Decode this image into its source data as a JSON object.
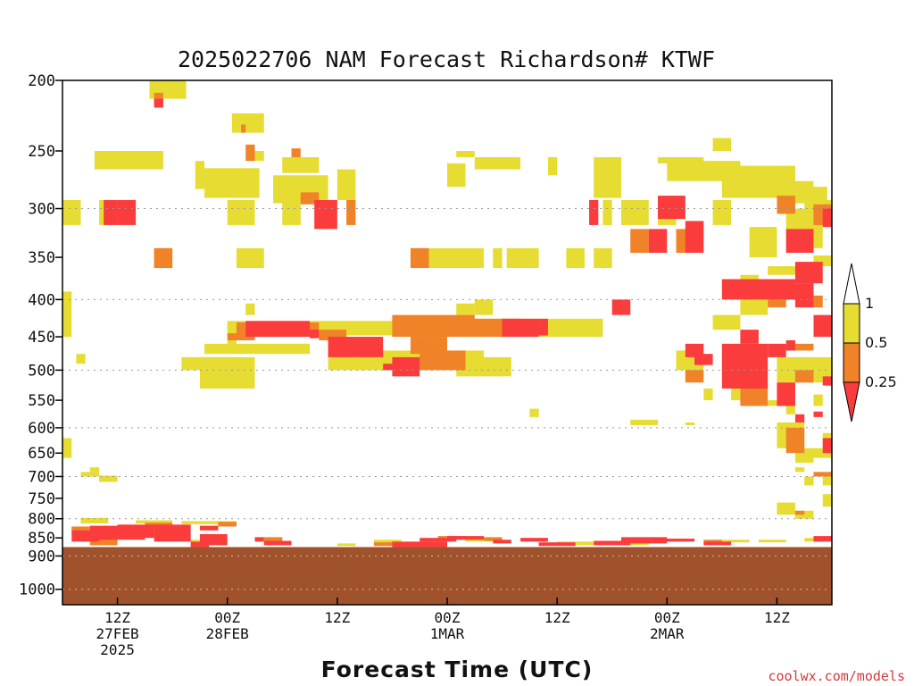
{
  "chart_data": {
    "type": "heatmap",
    "title": "2025022706 NAM Forecast Richardson# KTWF",
    "xlabel": "Forecast Time (UTC)",
    "ylabel": "",
    "credit": "coolwx.com/models",
    "x_range_hours": [
      6,
      90
    ],
    "y_range_hPa": [
      200,
      1050
    ],
    "y_scale": "log",
    "grid": "dotted horizontal at labeled pressure levels",
    "y_ticks": [
      200,
      250,
      300,
      350,
      400,
      450,
      500,
      550,
      600,
      650,
      700,
      750,
      800,
      850,
      900,
      1000
    ],
    "y_gridlines": [
      300,
      400,
      500,
      600,
      700,
      800,
      900,
      1000
    ],
    "x_ticks": [
      {
        "hour": 12,
        "line1": "12Z",
        "line2": "27FEB",
        "line3": "2025"
      },
      {
        "hour": 24,
        "line1": "00Z",
        "line2": "28FEB",
        "line3": ""
      },
      {
        "hour": 36,
        "line1": "12Z",
        "line2": "",
        "line3": ""
      },
      {
        "hour": 48,
        "line1": "00Z",
        "line2": "1MAR",
        "line3": ""
      },
      {
        "hour": 60,
        "line1": "12Z",
        "line2": "",
        "line3": ""
      },
      {
        "hour": 72,
        "line1": "00Z",
        "line2": "2MAR",
        "line3": ""
      },
      {
        "hour": 84,
        "line1": "12Z",
        "line2": "",
        "line3": ""
      }
    ],
    "legend": {
      "placement": "right",
      "levels": [
        {
          "label": "1",
          "value": 1
        },
        {
          "label": "0.5",
          "value": 0.5
        },
        {
          "label": "0.25",
          "value": 0.25
        }
      ],
      "colors": {
        "gt1": "#ffffff",
        "0.5-1": "#e6dc32",
        "0.25-0.5": "#f08228",
        "lt0.25": "#fa3c3c"
      }
    },
    "colors": {
      "ri_0.5_1": "#e6dc32",
      "ri_0.25_0.5": "#f08228",
      "ri_lt_0.25": "#fa3c3c",
      "below_ground": "#a0522d"
    },
    "ground_top_hPa": 875,
    "regions_ri_0.5_1": [
      [
        15.5,
        19.5,
        200,
        212
      ],
      [
        24.5,
        28,
        222,
        236
      ],
      [
        9.5,
        17,
        250,
        265
      ],
      [
        20.5,
        21.5,
        258,
        282
      ],
      [
        21.5,
        27.5,
        264,
        290
      ],
      [
        26.5,
        28,
        250,
        258
      ],
      [
        30,
        34,
        255,
        268
      ],
      [
        29,
        35,
        270,
        295
      ],
      [
        36,
        38,
        265,
        292
      ],
      [
        48,
        50,
        260,
        280
      ],
      [
        49,
        51,
        250,
        255
      ],
      [
        51,
        56,
        255,
        265
      ],
      [
        48,
        48.5,
        260,
        265
      ],
      [
        59,
        60,
        255,
        270
      ],
      [
        64,
        67,
        255,
        290
      ],
      [
        72,
        80,
        258,
        275
      ],
      [
        71,
        76,
        255,
        260
      ],
      [
        78,
        86,
        262,
        290
      ],
      [
        86,
        89.5,
        280,
        295
      ],
      [
        85,
        88,
        275,
        283
      ],
      [
        77,
        79,
        240,
        250
      ],
      [
        6,
        8,
        292,
        316
      ],
      [
        10,
        11,
        292,
        316
      ],
      [
        24,
        27,
        292,
        316
      ],
      [
        30,
        32,
        292,
        316
      ],
      [
        65,
        66,
        292,
        316
      ],
      [
        67,
        70,
        292,
        316
      ],
      [
        71,
        73,
        292,
        316
      ],
      [
        77,
        79,
        292,
        316
      ],
      [
        87,
        90,
        292,
        316
      ],
      [
        44,
        48,
        340,
        362
      ],
      [
        48,
        52,
        340,
        362
      ],
      [
        53,
        54,
        340,
        362
      ],
      [
        54.5,
        58,
        340,
        362
      ],
      [
        61,
        63,
        340,
        362
      ],
      [
        64,
        66,
        340,
        362
      ],
      [
        16,
        18,
        340,
        362
      ],
      [
        25,
        28,
        340,
        362
      ],
      [
        81,
        84,
        318,
        350
      ],
      [
        85,
        89,
        300,
        340
      ],
      [
        80,
        82,
        370,
        378
      ],
      [
        83,
        86,
        360,
        370
      ],
      [
        88,
        91,
        348,
        360
      ],
      [
        6,
        7,
        390,
        450
      ],
      [
        7.5,
        8.5,
        475,
        490
      ],
      [
        24,
        25,
        455,
        470
      ],
      [
        24,
        51,
        428,
        448
      ],
      [
        26,
        27,
        405,
        420
      ],
      [
        28,
        29,
        435,
        450
      ],
      [
        35,
        37,
        465,
        478
      ],
      [
        46,
        48,
        430,
        450
      ],
      [
        49,
        51,
        405,
        420
      ],
      [
        51,
        53,
        400,
        420
      ],
      [
        51,
        65,
        425,
        450
      ],
      [
        21.5,
        33,
        460,
        475
      ],
      [
        19,
        25,
        480,
        500
      ],
      [
        21,
        27,
        480,
        530
      ],
      [
        35,
        40,
        480,
        500
      ],
      [
        38,
        52,
        470,
        500
      ],
      [
        49,
        55,
        480,
        510
      ],
      [
        80,
        83,
        400,
        420
      ],
      [
        82,
        88,
        380,
        400
      ],
      [
        77,
        80,
        420,
        440
      ],
      [
        73,
        75,
        470,
        500
      ],
      [
        74,
        76,
        480,
        510
      ],
      [
        80,
        82,
        470,
        500
      ],
      [
        84,
        90,
        480,
        520
      ],
      [
        81,
        82,
        520,
        560
      ],
      [
        79,
        80,
        510,
        550
      ],
      [
        76,
        77,
        530,
        550
      ],
      [
        83,
        84,
        550,
        560
      ],
      [
        85,
        86,
        560,
        575
      ],
      [
        88,
        89,
        540,
        560
      ],
      [
        57,
        58,
        565,
        580
      ],
      [
        68,
        71,
        585,
        595
      ],
      [
        74,
        75,
        590,
        595
      ],
      [
        84,
        87,
        590,
        640
      ],
      [
        86,
        88,
        640,
        670
      ],
      [
        86,
        87,
        680,
        690
      ],
      [
        88,
        90,
        640,
        660
      ],
      [
        89,
        90,
        610,
        630
      ],
      [
        87,
        88,
        700,
        720
      ],
      [
        89,
        90,
        700,
        720
      ],
      [
        89,
        90,
        740,
        770
      ],
      [
        84,
        86,
        760,
        790
      ],
      [
        86,
        88,
        780,
        800
      ],
      [
        6,
        7,
        620,
        660
      ],
      [
        8,
        10,
        690,
        700
      ],
      [
        10,
        12,
        698,
        712
      ],
      [
        9,
        10,
        680,
        690
      ]
    ],
    "regions_ri_0.25_0.5": [
      [
        16,
        17,
        208,
        215
      ],
      [
        25.5,
        26,
        230,
        236
      ],
      [
        26,
        27,
        245,
        258
      ],
      [
        31,
        32,
        248,
        255
      ],
      [
        37,
        38,
        292,
        316
      ],
      [
        32,
        34,
        285,
        296
      ],
      [
        16,
        18,
        340,
        362
      ],
      [
        44,
        46,
        340,
        362
      ],
      [
        68,
        70,
        320,
        345
      ],
      [
        73,
        75,
        320,
        345
      ],
      [
        84,
        86,
        288,
        305
      ],
      [
        88,
        90,
        296,
        316
      ],
      [
        25,
        34,
        430,
        450
      ],
      [
        34,
        37,
        440,
        455
      ],
      [
        42,
        51,
        420,
        450
      ],
      [
        44,
        48,
        450,
        475
      ],
      [
        45,
        50,
        470,
        500
      ],
      [
        49,
        56,
        425,
        450
      ],
      [
        56,
        59,
        430,
        448
      ],
      [
        78,
        80,
        470,
        500
      ],
      [
        74,
        76,
        500,
        520
      ],
      [
        80,
        83,
        520,
        560
      ],
      [
        84,
        86,
        540,
        560
      ],
      [
        86,
        88,
        460,
        470
      ],
      [
        83,
        85,
        390,
        410
      ],
      [
        86,
        89,
        395,
        410
      ],
      [
        86,
        88,
        500,
        520
      ],
      [
        85,
        87,
        600,
        650
      ],
      [
        88,
        90,
        690,
        700
      ],
      [
        86,
        87,
        780,
        790
      ],
      [
        89,
        90,
        630,
        640
      ],
      [
        24,
        27,
        445,
        455
      ]
    ],
    "regions_ri_lt_0.25": [
      [
        10.5,
        12,
        292,
        316
      ],
      [
        12,
        14,
        292,
        316
      ],
      [
        16,
        17,
        212,
        218
      ],
      [
        33.5,
        36,
        292,
        320
      ],
      [
        63.5,
        64.5,
        292,
        316
      ],
      [
        70,
        72,
        320,
        345
      ],
      [
        71,
        74,
        288,
        310
      ],
      [
        74,
        76,
        312,
        345
      ],
      [
        78,
        86,
        375,
        400
      ],
      [
        86,
        89,
        355,
        380
      ],
      [
        85,
        88,
        320,
        345
      ],
      [
        89,
        90,
        300,
        318
      ],
      [
        86,
        88,
        380,
        410
      ],
      [
        26,
        33,
        428,
        450
      ],
      [
        35,
        41,
        450,
        480
      ],
      [
        33,
        34,
        440,
        452
      ],
      [
        41,
        45,
        490,
        500
      ],
      [
        42,
        45,
        480,
        510
      ],
      [
        54,
        58,
        425,
        450
      ],
      [
        58,
        59,
        425,
        448
      ],
      [
        66,
        68,
        400,
        420
      ],
      [
        74,
        76,
        460,
        480
      ],
      [
        75,
        77,
        475,
        492
      ],
      [
        78,
        83,
        460,
        530
      ],
      [
        80,
        82,
        440,
        460
      ],
      [
        83,
        85,
        460,
        480
      ],
      [
        85,
        86,
        455,
        470
      ],
      [
        90,
        91,
        380,
        400
      ],
      [
        88,
        90,
        420,
        450
      ],
      [
        84,
        86,
        520,
        560
      ],
      [
        89,
        90,
        510,
        525
      ],
      [
        89,
        90,
        620,
        650
      ],
      [
        88,
        89,
        570,
        580
      ],
      [
        86,
        87,
        575,
        590
      ]
    ],
    "near_surface_lt_0.25": [
      [
        7,
        10,
        830,
        860
      ],
      [
        9,
        15,
        818,
        855
      ],
      [
        12,
        16,
        815,
        850
      ],
      [
        16,
        20,
        815,
        860
      ],
      [
        21,
        23,
        818,
        830
      ],
      [
        21,
        24,
        840,
        870
      ],
      [
        20,
        22,
        860,
        875
      ],
      [
        27,
        28,
        848,
        860
      ],
      [
        28,
        31,
        858,
        870
      ],
      [
        42,
        48,
        860,
        875
      ],
      [
        45,
        49,
        850,
        860
      ],
      [
        48,
        52,
        845,
        855
      ],
      [
        53,
        55,
        855,
        865
      ],
      [
        56,
        59,
        850,
        860
      ],
      [
        58,
        62,
        862,
        872
      ],
      [
        64,
        68,
        858,
        870
      ],
      [
        67,
        72,
        848,
        865
      ],
      [
        71,
        75,
        852,
        860
      ],
      [
        76,
        79,
        860,
        870
      ],
      [
        88,
        90,
        845,
        860
      ]
    ],
    "near_surface_0.25_0.5": [
      [
        7,
        9,
        820,
        835
      ],
      [
        9,
        12,
        840,
        870
      ],
      [
        15,
        18,
        810,
        820
      ],
      [
        23,
        25,
        808,
        820
      ],
      [
        28,
        30,
        848,
        858
      ],
      [
        40,
        44,
        862,
        872
      ],
      [
        47,
        50,
        845,
        852
      ],
      [
        52,
        54,
        848,
        858
      ],
      [
        76,
        78,
        855,
        865
      ]
    ],
    "near_surface_0.5_1": [
      [
        8,
        11,
        798,
        812
      ],
      [
        14,
        18,
        804,
        812
      ],
      [
        19,
        25,
        806,
        814
      ],
      [
        20,
        24,
        855,
        870
      ],
      [
        36,
        38,
        865,
        872
      ],
      [
        40,
        43,
        855,
        865
      ],
      [
        50,
        53,
        850,
        860
      ],
      [
        60,
        64,
        860,
        870
      ],
      [
        66,
        70,
        862,
        870
      ],
      [
        78,
        81,
        855,
        862
      ],
      [
        82,
        85,
        855,
        862
      ],
      [
        87,
        89,
        850,
        860
      ]
    ]
  }
}
